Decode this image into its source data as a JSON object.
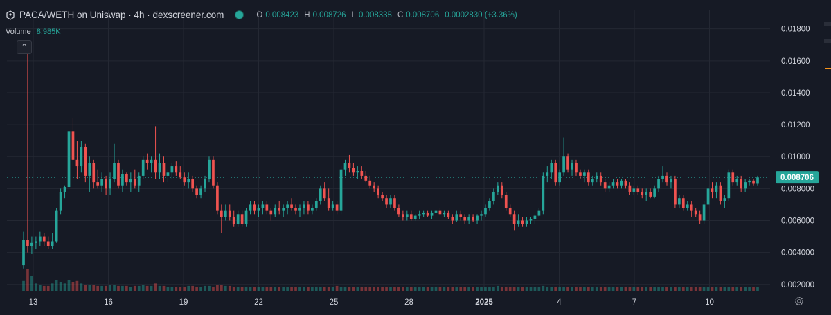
{
  "header": {
    "title": "PACA/WETH on Uniswap · 4h · dexscreener.com",
    "ohlc": [
      {
        "key": "O",
        "value": "0.008423"
      },
      {
        "key": "H",
        "value": "0.008726"
      },
      {
        "key": "L",
        "value": "0.008338"
      },
      {
        "key": "C",
        "value": "0.008706"
      },
      {
        "key": "",
        "value": "0.0002830 (+3.36%)"
      }
    ],
    "volume_label": "Volume",
    "volume_value": "8.985K"
  },
  "colors": {
    "background": "#161a25",
    "up": "#26a69a",
    "down": "#ef5350",
    "grid": "#242833",
    "text": "#d1d4dc"
  },
  "chart_data": {
    "type": "candlestick",
    "y_ticks": [
      "0.01800",
      "0.01600",
      "0.01400",
      "0.01200",
      "0.01000",
      "0.008000",
      "0.006000",
      "0.004000",
      "0.002000"
    ],
    "ylim": [
      0.0016,
      0.0192
    ],
    "x_ticks": [
      "13",
      "16",
      "19",
      "22",
      "25",
      "28",
      "2025",
      "4",
      "7",
      "10"
    ],
    "last_price": "0.008706",
    "grid": true,
    "candles": [
      [
        0.0032,
        0.0053,
        0.003,
        0.0048
      ],
      [
        0.0048,
        0.0172,
        0.004,
        0.0044
      ],
      [
        0.0044,
        0.005,
        0.0039,
        0.0046
      ],
      [
        0.0046,
        0.005,
        0.0042,
        0.0047
      ],
      [
        0.0047,
        0.0053,
        0.0044,
        0.005
      ],
      [
        0.005,
        0.0052,
        0.0044,
        0.0047
      ],
      [
        0.0047,
        0.005,
        0.0042,
        0.0044
      ],
      [
        0.0044,
        0.0052,
        0.0042,
        0.0047
      ],
      [
        0.0047,
        0.0068,
        0.0046,
        0.0066
      ],
      [
        0.0066,
        0.008,
        0.0064,
        0.0078
      ],
      [
        0.0078,
        0.0082,
        0.0074,
        0.0081
      ],
      [
        0.0081,
        0.0122,
        0.008,
        0.0116
      ],
      [
        0.0116,
        0.0124,
        0.0094,
        0.0098
      ],
      [
        0.0098,
        0.011,
        0.0086,
        0.0094
      ],
      [
        0.0094,
        0.011,
        0.009,
        0.0106
      ],
      [
        0.0106,
        0.0108,
        0.0084,
        0.0088
      ],
      [
        0.0088,
        0.01,
        0.0078,
        0.0096
      ],
      [
        0.0096,
        0.0098,
        0.008,
        0.0084
      ],
      [
        0.0084,
        0.0092,
        0.008,
        0.0082
      ],
      [
        0.0082,
        0.009,
        0.0078,
        0.0086
      ],
      [
        0.0086,
        0.0088,
        0.0076,
        0.008
      ],
      [
        0.008,
        0.009,
        0.0076,
        0.0086
      ],
      [
        0.0086,
        0.0108,
        0.0084,
        0.0096
      ],
      [
        0.0096,
        0.0098,
        0.008,
        0.0082
      ],
      [
        0.0082,
        0.0092,
        0.0078,
        0.0089
      ],
      [
        0.0089,
        0.009,
        0.0082,
        0.0084
      ],
      [
        0.0084,
        0.009,
        0.0078,
        0.0086
      ],
      [
        0.0086,
        0.0092,
        0.008,
        0.0082
      ],
      [
        0.0082,
        0.009,
        0.0078,
        0.0088
      ],
      [
        0.0088,
        0.01,
        0.0086,
        0.0098
      ],
      [
        0.0098,
        0.0102,
        0.0092,
        0.0096
      ],
      [
        0.0096,
        0.01,
        0.009,
        0.0098
      ],
      [
        0.0098,
        0.0119,
        0.0086,
        0.009
      ],
      [
        0.009,
        0.0102,
        0.0086,
        0.0096
      ],
      [
        0.0096,
        0.01,
        0.0084,
        0.0088
      ],
      [
        0.0088,
        0.0092,
        0.0084,
        0.009
      ],
      [
        0.009,
        0.0096,
        0.0086,
        0.0094
      ],
      [
        0.0094,
        0.0097,
        0.0088,
        0.009
      ],
      [
        0.009,
        0.0094,
        0.0086,
        0.0087
      ],
      [
        0.0087,
        0.009,
        0.0082,
        0.0084
      ],
      [
        0.0084,
        0.009,
        0.008,
        0.0086
      ],
      [
        0.0086,
        0.0088,
        0.0078,
        0.008
      ],
      [
        0.008,
        0.0082,
        0.0074,
        0.0076
      ],
      [
        0.0076,
        0.0082,
        0.0074,
        0.008
      ],
      [
        0.008,
        0.0088,
        0.0078,
        0.0086
      ],
      [
        0.0086,
        0.01,
        0.0084,
        0.0098
      ],
      [
        0.0098,
        0.01,
        0.008,
        0.0082
      ],
      [
        0.0082,
        0.0084,
        0.0064,
        0.0066
      ],
      [
        0.0066,
        0.007,
        0.0052,
        0.0062
      ],
      [
        0.0062,
        0.007,
        0.006,
        0.0066
      ],
      [
        0.0066,
        0.007,
        0.006,
        0.0062
      ],
      [
        0.0062,
        0.0066,
        0.0056,
        0.0058
      ],
      [
        0.0058,
        0.0066,
        0.0056,
        0.0064
      ],
      [
        0.0064,
        0.0066,
        0.0056,
        0.0058
      ],
      [
        0.0058,
        0.0068,
        0.0056,
        0.0066
      ],
      [
        0.0066,
        0.0072,
        0.0064,
        0.007
      ],
      [
        0.007,
        0.0072,
        0.0064,
        0.0066
      ],
      [
        0.0066,
        0.007,
        0.0062,
        0.0068
      ],
      [
        0.0068,
        0.0072,
        0.0064,
        0.007
      ],
      [
        0.007,
        0.0072,
        0.0064,
        0.0066
      ],
      [
        0.0066,
        0.0068,
        0.006,
        0.0064
      ],
      [
        0.0064,
        0.007,
        0.0062,
        0.0068
      ],
      [
        0.0068,
        0.0072,
        0.0064,
        0.0066
      ],
      [
        0.0066,
        0.007,
        0.0062,
        0.0068
      ],
      [
        0.0068,
        0.0072,
        0.0064,
        0.007
      ],
      [
        0.007,
        0.0074,
        0.0066,
        0.0068
      ],
      [
        0.0068,
        0.007,
        0.0064,
        0.0066
      ],
      [
        0.0066,
        0.007,
        0.0062,
        0.0068
      ],
      [
        0.0068,
        0.0072,
        0.0064,
        0.007
      ],
      [
        0.007,
        0.0072,
        0.0064,
        0.0066
      ],
      [
        0.0066,
        0.007,
        0.0064,
        0.0068
      ],
      [
        0.0068,
        0.0074,
        0.0066,
        0.0072
      ],
      [
        0.0072,
        0.0082,
        0.007,
        0.008
      ],
      [
        0.008,
        0.0084,
        0.0072,
        0.0074
      ],
      [
        0.0074,
        0.008,
        0.0066,
        0.0068
      ],
      [
        0.0068,
        0.0072,
        0.0066,
        0.007
      ],
      [
        0.007,
        0.0072,
        0.0064,
        0.0066
      ],
      [
        0.0066,
        0.0094,
        0.0064,
        0.0092
      ],
      [
        0.0092,
        0.0098,
        0.0088,
        0.0096
      ],
      [
        0.0096,
        0.0101,
        0.009,
        0.0093
      ],
      [
        0.0093,
        0.0096,
        0.0088,
        0.009
      ],
      [
        0.009,
        0.0094,
        0.0086,
        0.0091
      ],
      [
        0.0091,
        0.0094,
        0.0086,
        0.0088
      ],
      [
        0.0088,
        0.0091,
        0.0084,
        0.0085
      ],
      [
        0.0085,
        0.0088,
        0.008,
        0.0082
      ],
      [
        0.0082,
        0.0084,
        0.0078,
        0.008
      ],
      [
        0.008,
        0.0082,
        0.0074,
        0.0076
      ],
      [
        0.0076,
        0.0078,
        0.0072,
        0.0074
      ],
      [
        0.0074,
        0.0076,
        0.0068,
        0.007
      ],
      [
        0.007,
        0.0076,
        0.0068,
        0.0074
      ],
      [
        0.0074,
        0.0076,
        0.0066,
        0.0068
      ],
      [
        0.0068,
        0.007,
        0.0062,
        0.0064
      ],
      [
        0.0064,
        0.0066,
        0.006,
        0.0062
      ],
      [
        0.0062,
        0.0066,
        0.006,
        0.0064
      ],
      [
        0.0064,
        0.0066,
        0.006,
        0.0061
      ],
      [
        0.0061,
        0.0064,
        0.006,
        0.0063
      ],
      [
        0.0063,
        0.0066,
        0.0061,
        0.0064
      ],
      [
        0.0064,
        0.0066,
        0.0062,
        0.0065
      ],
      [
        0.0065,
        0.0066,
        0.0062,
        0.0063
      ],
      [
        0.0063,
        0.0066,
        0.0061,
        0.0065
      ],
      [
        0.0065,
        0.0068,
        0.0063,
        0.0066
      ],
      [
        0.0066,
        0.0068,
        0.0063,
        0.0064
      ],
      [
        0.0064,
        0.0066,
        0.0062,
        0.0065
      ],
      [
        0.0065,
        0.0066,
        0.0061,
        0.0062
      ],
      [
        0.0062,
        0.0064,
        0.0058,
        0.006
      ],
      [
        0.006,
        0.0066,
        0.0059,
        0.0064
      ],
      [
        0.0064,
        0.0066,
        0.006,
        0.0062
      ],
      [
        0.0062,
        0.0064,
        0.0058,
        0.006
      ],
      [
        0.006,
        0.0064,
        0.0058,
        0.0062
      ],
      [
        0.0062,
        0.0064,
        0.0059,
        0.006
      ],
      [
        0.006,
        0.0064,
        0.0058,
        0.0063
      ],
      [
        0.0063,
        0.0066,
        0.006,
        0.0064
      ],
      [
        0.0064,
        0.007,
        0.0062,
        0.0068
      ],
      [
        0.0068,
        0.0074,
        0.0066,
        0.0072
      ],
      [
        0.0072,
        0.008,
        0.007,
        0.0078
      ],
      [
        0.0078,
        0.0084,
        0.0076,
        0.0082
      ],
      [
        0.0082,
        0.0084,
        0.0074,
        0.0076
      ],
      [
        0.0076,
        0.0078,
        0.0066,
        0.0068
      ],
      [
        0.0068,
        0.007,
        0.0062,
        0.0064
      ],
      [
        0.0064,
        0.0066,
        0.0054,
        0.0058
      ],
      [
        0.0058,
        0.0064,
        0.0056,
        0.006
      ],
      [
        0.006,
        0.0062,
        0.0056,
        0.0058
      ],
      [
        0.0058,
        0.0062,
        0.0056,
        0.006
      ],
      [
        0.006,
        0.0062,
        0.0058,
        0.0061
      ],
      [
        0.0061,
        0.0064,
        0.0058,
        0.0063
      ],
      [
        0.0063,
        0.0068,
        0.0062,
        0.0066
      ],
      [
        0.0066,
        0.009,
        0.0064,
        0.0088
      ],
      [
        0.0088,
        0.0094,
        0.0084,
        0.009
      ],
      [
        0.009,
        0.0098,
        0.0086,
        0.0096
      ],
      [
        0.0096,
        0.0098,
        0.0082,
        0.0084
      ],
      [
        0.0084,
        0.0092,
        0.0082,
        0.009
      ],
      [
        0.009,
        0.0112,
        0.0088,
        0.01
      ],
      [
        0.01,
        0.0102,
        0.009,
        0.0092
      ],
      [
        0.0092,
        0.0098,
        0.0088,
        0.0096
      ],
      [
        0.0096,
        0.0098,
        0.0088,
        0.009
      ],
      [
        0.009,
        0.0092,
        0.0086,
        0.0088
      ],
      [
        0.0088,
        0.0092,
        0.0084,
        0.009
      ],
      [
        0.009,
        0.0092,
        0.0082,
        0.0084
      ],
      [
        0.0084,
        0.0088,
        0.0082,
        0.0086
      ],
      [
        0.0086,
        0.009,
        0.0084,
        0.0088
      ],
      [
        0.0088,
        0.009,
        0.0082,
        0.0084
      ],
      [
        0.0084,
        0.0086,
        0.0078,
        0.008
      ],
      [
        0.008,
        0.0084,
        0.0078,
        0.0082
      ],
      [
        0.0082,
        0.0086,
        0.008,
        0.0084
      ],
      [
        0.0084,
        0.0086,
        0.008,
        0.0082
      ],
      [
        0.0082,
        0.0086,
        0.008,
        0.0085
      ],
      [
        0.0085,
        0.0086,
        0.008,
        0.0082
      ],
      [
        0.0082,
        0.0084,
        0.0076,
        0.0078
      ],
      [
        0.0078,
        0.0082,
        0.0076,
        0.008
      ],
      [
        0.008,
        0.0082,
        0.0076,
        0.0078
      ],
      [
        0.0078,
        0.008,
        0.0074,
        0.0076
      ],
      [
        0.0076,
        0.008,
        0.0072,
        0.0078
      ],
      [
        0.0078,
        0.008,
        0.0074,
        0.0075
      ],
      [
        0.0075,
        0.0082,
        0.0074,
        0.008
      ],
      [
        0.008,
        0.0088,
        0.0078,
        0.0086
      ],
      [
        0.0086,
        0.0094,
        0.0084,
        0.0088
      ],
      [
        0.0088,
        0.009,
        0.0082,
        0.0084
      ],
      [
        0.0084,
        0.0088,
        0.008,
        0.0086
      ],
      [
        0.0086,
        0.0088,
        0.0068,
        0.007
      ],
      [
        0.007,
        0.0076,
        0.0068,
        0.0074
      ],
      [
        0.0074,
        0.0076,
        0.0066,
        0.0068
      ],
      [
        0.0068,
        0.0072,
        0.0066,
        0.007
      ],
      [
        0.007,
        0.0072,
        0.0062,
        0.0066
      ],
      [
        0.0066,
        0.0068,
        0.0062,
        0.0064
      ],
      [
        0.0064,
        0.0066,
        0.0058,
        0.006
      ],
      [
        0.006,
        0.0072,
        0.0058,
        0.007
      ],
      [
        0.007,
        0.0082,
        0.0068,
        0.008
      ],
      [
        0.008,
        0.0084,
        0.0074,
        0.0078
      ],
      [
        0.0078,
        0.0084,
        0.0074,
        0.0082
      ],
      [
        0.0082,
        0.0084,
        0.007,
        0.0072
      ],
      [
        0.0072,
        0.0076,
        0.0068,
        0.0074
      ],
      [
        0.0074,
        0.0092,
        0.0072,
        0.009
      ],
      [
        0.009,
        0.0092,
        0.0082,
        0.0084
      ],
      [
        0.0084,
        0.0088,
        0.0082,
        0.0086
      ],
      [
        0.0086,
        0.0088,
        0.0078,
        0.008
      ],
      [
        0.008,
        0.0086,
        0.0078,
        0.0084
      ],
      [
        0.0084,
        0.0086,
        0.0082,
        0.0085
      ],
      [
        0.0085,
        0.0086,
        0.0082,
        0.0083
      ],
      [
        0.0083,
        0.0088,
        0.0082,
        0.0087
      ]
    ],
    "volumes": [
      8,
      18,
      12,
      6,
      5,
      4,
      4,
      6,
      9,
      7,
      6,
      9,
      7,
      8,
      6,
      5,
      5,
      5,
      4,
      4,
      4,
      5,
      5,
      4,
      4,
      4,
      3,
      4,
      4,
      5,
      4,
      4,
      6,
      4,
      4,
      3,
      3,
      3,
      3,
      3,
      4,
      4,
      3,
      3,
      4,
      4,
      3,
      5,
      5,
      4,
      4,
      3,
      3,
      3,
      3,
      3,
      3,
      3,
      3,
      3,
      3,
      3,
      3,
      3,
      3,
      3,
      3,
      3,
      3,
      3,
      3,
      3,
      3,
      3,
      3,
      3,
      4,
      3,
      3,
      3,
      3,
      3,
      3,
      3,
      3,
      3,
      3,
      3,
      3,
      3,
      3,
      3,
      3,
      3,
      3,
      3,
      3,
      3,
      3,
      3,
      3,
      3,
      3,
      3,
      3,
      3,
      3,
      3,
      3,
      3,
      3,
      3,
      3,
      3,
      3,
      4,
      3,
      3,
      3,
      3,
      3,
      3,
      3,
      3,
      3,
      3,
      4,
      3,
      3,
      3,
      3,
      3,
      3,
      3,
      3,
      3,
      3,
      3,
      3,
      3,
      3,
      3,
      3,
      3,
      3,
      3,
      3,
      3,
      3,
      3,
      3,
      3,
      3,
      3,
      3,
      3,
      3,
      3,
      3,
      3,
      3,
      3,
      3,
      3,
      3,
      3,
      3,
      3,
      3,
      3,
      3,
      3,
      3,
      3,
      3,
      3,
      3,
      3,
      3,
      3,
      3,
      3
    ]
  }
}
